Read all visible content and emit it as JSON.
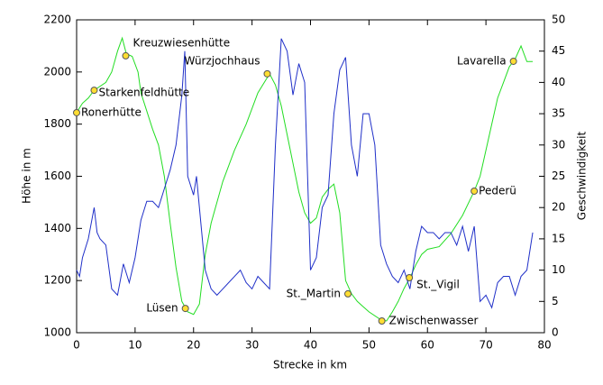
{
  "chart_data": {
    "type": "line",
    "xlabel": "Strecke in km",
    "ylabel": "Höhe in m",
    "y2label": "Geschwindigkeit",
    "xlim": [
      0,
      80
    ],
    "xticks": [
      0,
      10,
      20,
      30,
      40,
      50,
      60,
      70,
      80
    ],
    "ylim": [
      1000,
      2200
    ],
    "yticks": [
      1000,
      1200,
      1400,
      1600,
      1800,
      2000,
      2200
    ],
    "y2lim": [
      0,
      50
    ],
    "y2ticks": [
      0,
      5,
      10,
      15,
      20,
      25,
      30,
      35,
      40,
      45,
      50
    ],
    "grid": false,
    "series": [
      {
        "color": "#22dd22",
        "x": [
          0,
          1,
          2,
          3,
          5,
          6,
          7,
          7.8,
          8.5,
          9.5,
          10.5,
          11,
          12,
          13,
          14,
          15,
          16,
          17,
          18,
          19,
          20,
          21,
          22,
          23,
          25,
          27,
          29,
          31,
          33,
          34,
          35,
          36,
          37,
          38,
          39,
          40,
          41,
          42,
          43,
          44,
          45,
          46,
          47,
          48,
          49,
          50,
          52,
          53,
          54,
          55,
          56,
          57,
          58,
          59,
          60,
          62,
          64,
          66,
          68,
          69,
          70,
          71,
          72,
          73,
          74,
          75,
          76,
          77,
          78
        ],
        "values": [
          1844,
          1880,
          1900,
          1930,
          1960,
          2000,
          2080,
          2130,
          2070,
          2060,
          2000,
          1920,
          1850,
          1780,
          1720,
          1600,
          1420,
          1250,
          1120,
          1080,
          1070,
          1110,
          1300,
          1420,
          1580,
          1700,
          1800,
          1920,
          1993,
          1950,
          1870,
          1760,
          1650,
          1540,
          1460,
          1420,
          1440,
          1520,
          1550,
          1570,
          1460,
          1200,
          1150,
          1120,
          1100,
          1080,
          1050,
          1045,
          1080,
          1120,
          1170,
          1210,
          1260,
          1300,
          1320,
          1330,
          1380,
          1450,
          1543,
          1600,
          1700,
          1800,
          1900,
          1960,
          2020,
          2050,
          2100,
          2040,
          2040
        ]
      },
      {
        "color": "#1f2fc8",
        "axis": "y2",
        "x": [
          0,
          0.5,
          1,
          2,
          3,
          3.5,
          4,
          5,
          6,
          7,
          8,
          9,
          10,
          11,
          12,
          13,
          14,
          15,
          16,
          17,
          18,
          18.5,
          19,
          20,
          20.5,
          21,
          22,
          23,
          24,
          25,
          26,
          27,
          28,
          29,
          30,
          31,
          32,
          33,
          34,
          35,
          36,
          37,
          38,
          39,
          40,
          41,
          42,
          43,
          44,
          45,
          46,
          47,
          48,
          49,
          50,
          51,
          52,
          53,
          54,
          55,
          56,
          57,
          58,
          59,
          60,
          61,
          62,
          63,
          64,
          65,
          66,
          67,
          68,
          69,
          70,
          71,
          72,
          73,
          74,
          75,
          76,
          77,
          78
        ],
        "values": [
          10,
          9,
          12,
          15,
          20,
          16,
          15,
          14,
          7,
          6,
          11,
          8,
          12,
          18,
          21,
          21,
          20,
          23,
          26,
          30,
          38,
          45,
          25,
          22,
          25,
          20,
          10,
          7,
          6,
          7,
          8,
          9,
          10,
          8,
          7,
          9,
          8,
          7,
          30,
          47,
          45,
          38,
          43,
          40,
          10,
          12,
          20,
          22,
          35,
          42,
          44,
          30,
          25,
          35,
          35,
          30,
          14,
          11,
          9,
          8,
          10,
          7,
          13,
          17,
          16,
          16,
          15,
          16,
          16,
          14,
          17,
          13,
          17,
          5,
          6,
          4,
          8,
          9,
          9,
          6,
          9,
          10,
          16
        ]
      }
    ],
    "annotations": [
      {
        "text": "Ronerhütte",
        "x": 0,
        "y": 1844
      },
      {
        "text": "Starkenfeldhütte",
        "x": 3.0,
        "y": 1930
      },
      {
        "text": "Kreuzwiesenhütte",
        "x": 8.4,
        "y": 2062
      },
      {
        "text": "Lüsen",
        "x": 18.6,
        "y": 1093
      },
      {
        "text": "Würzjochhaus",
        "x": 32.6,
        "y": 1993
      },
      {
        "text": "St._Martin",
        "x": 46.4,
        "y": 1149
      },
      {
        "text": "Zwischenwasser",
        "x": 52.2,
        "y": 1045
      },
      {
        "text": "St._Vigil",
        "x": 56.9,
        "y": 1211
      },
      {
        "text": "Pederü",
        "x": 68.0,
        "y": 1543
      },
      {
        "text": "Lavarella",
        "x": 74.7,
        "y": 2041
      }
    ]
  }
}
